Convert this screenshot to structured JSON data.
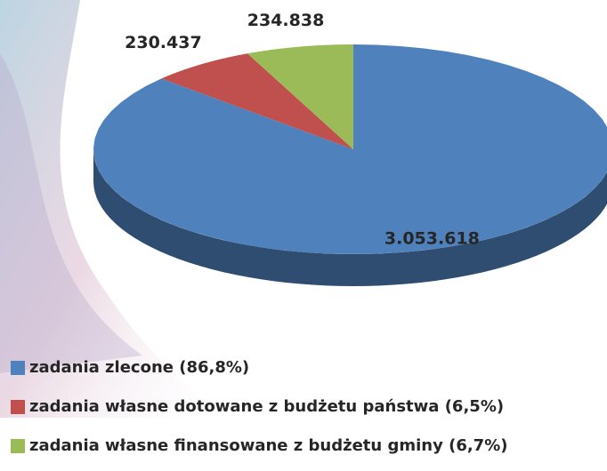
{
  "chart_data": {
    "type": "pie",
    "categories": [
      "zadania zlecone (86,8%)",
      "zadania własne dotowane z budżetu państwa (6,5%)",
      "zadania własne finansowane z budżetu gminy (6,7%)"
    ],
    "values": [
      3053618,
      230437,
      234838
    ],
    "value_labels": [
      "3.053.618",
      "230.437",
      "234.838"
    ],
    "colors": [
      "#4f81bd",
      "#c0504d",
      "#9bbb59"
    ],
    "legend": "bottom-left"
  }
}
